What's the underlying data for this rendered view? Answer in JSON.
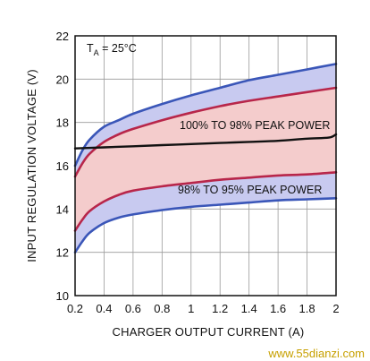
{
  "chart_data": {
    "type": "line",
    "title": "",
    "xlabel": "CHARGER OUTPUT CURRENT (A)",
    "ylabel": "INPUT REGULATION VOLTAGE (V)",
    "xlim": [
      0.2,
      2.0
    ],
    "ylim": [
      10,
      22
    ],
    "x_ticks": [
      "0.2",
      "0.4",
      "0.6",
      "0.8",
      "1",
      "1.2",
      "1.4",
      "1.6",
      "1.8",
      "2"
    ],
    "y_ticks": [
      "10",
      "12",
      "14",
      "16",
      "18",
      "20",
      "22"
    ],
    "grid": true,
    "condition_label": {
      "symbol": "T",
      "subscript": "A",
      "value": " = 25°C"
    },
    "annotations": [
      "100% TO 98% PEAK POWER",
      "98% TO 95% PEAK POWER"
    ],
    "series": [
      {
        "x": [
          0.2,
          0.25,
          0.3,
          0.4,
          0.5,
          0.6,
          0.8,
          1.0,
          1.2,
          1.4,
          1.6,
          1.8,
          2.0
        ],
        "values": [
          16.0,
          16.7,
          17.2,
          17.8,
          18.1,
          18.4,
          18.85,
          19.25,
          19.6,
          19.95,
          20.2,
          20.45,
          20.7
        ]
      },
      {
        "x": [
          0.2,
          0.25,
          0.3,
          0.4,
          0.5,
          0.6,
          0.8,
          1.0,
          1.2,
          1.4,
          1.6,
          1.8,
          2.0
        ],
        "values": [
          15.5,
          16.1,
          16.55,
          17.1,
          17.45,
          17.7,
          18.1,
          18.45,
          18.75,
          19.0,
          19.2,
          19.4,
          19.6
        ]
      },
      {
        "x": [
          0.2,
          0.4,
          0.6,
          0.8,
          1.0,
          1.2,
          1.4,
          1.6,
          1.8,
          1.95,
          2.0
        ],
        "values": [
          16.8,
          16.85,
          16.9,
          16.95,
          17.0,
          17.05,
          17.1,
          17.15,
          17.25,
          17.3,
          17.45
        ]
      },
      {
        "x": [
          0.2,
          0.25,
          0.3,
          0.4,
          0.5,
          0.6,
          0.8,
          1.0,
          1.2,
          1.4,
          1.6,
          1.8,
          2.0
        ],
        "values": [
          13.0,
          13.5,
          13.9,
          14.35,
          14.65,
          14.85,
          15.05,
          15.2,
          15.35,
          15.45,
          15.55,
          15.6,
          15.7
        ]
      },
      {
        "x": [
          0.2,
          0.25,
          0.3,
          0.4,
          0.5,
          0.6,
          0.8,
          1.0,
          1.2,
          1.4,
          1.6,
          1.8,
          2.0
        ],
        "values": [
          12.0,
          12.5,
          12.9,
          13.35,
          13.6,
          13.75,
          13.95,
          14.1,
          14.2,
          14.3,
          14.4,
          14.45,
          14.5
        ]
      }
    ],
    "colors": {
      "outer_curves": "#3a56b8",
      "inner_curves": "#b8264a",
      "reference_line": "#111111",
      "blue_band_fill": "#c8caf0",
      "red_band_fill": "#f4cccc",
      "grid": "#9a9a9a"
    }
  },
  "watermark": "www.55dianzi.com"
}
